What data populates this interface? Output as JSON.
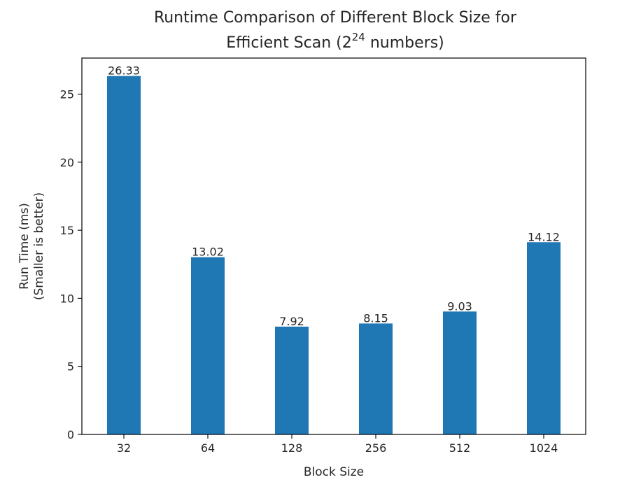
{
  "chart_data": {
    "type": "bar",
    "title_line1": "Runtime Comparison of Different Block Size for",
    "title_line2_prefix": "Efficient Scan (2",
    "title_line2_sup": "24",
    "title_line2_suffix": " numbers)",
    "xlabel": "Block Size",
    "ylabel_line1": "Run Time (ms)",
    "ylabel_line2": "(Smaller is better)",
    "categories": [
      "32",
      "64",
      "128",
      "256",
      "512",
      "1024"
    ],
    "values": [
      26.33,
      13.02,
      7.92,
      8.15,
      9.03,
      14.12
    ],
    "data_labels": [
      "26.33",
      "13.02",
      "7.92",
      "8.15",
      "9.03",
      "14.12"
    ],
    "yticks": [
      0,
      5,
      10,
      15,
      20,
      25
    ],
    "ylim": [
      0,
      27.65
    ],
    "grid": false,
    "bar_color": "#1f77b4"
  }
}
